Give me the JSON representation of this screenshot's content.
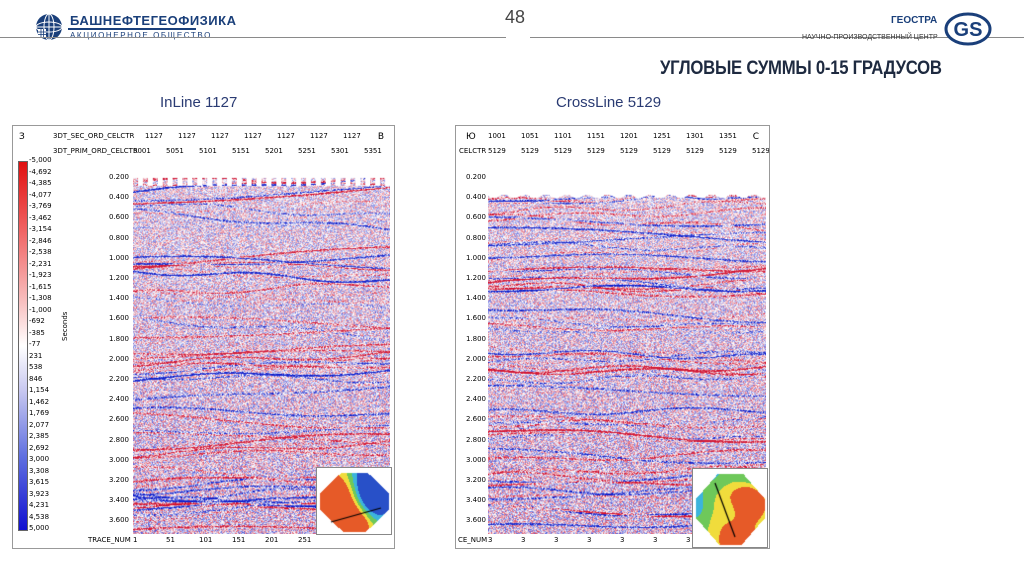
{
  "page_number": "48",
  "header": {
    "left_company": "БАШНЕФТЕГЕОФИЗИКА",
    "left_subtitle": "АКЦИОНЕРНОЕ ОБЩЕСТВО",
    "right_company": "ГЕОСТРА",
    "right_subtitle": "НАУЧНО-ПРОИЗВОДСТВЕННЫЙ ЦЕНТР",
    "right_logo_text": "GS"
  },
  "slide_title": "Угловые суммы 0-15 градусов",
  "left_panel": {
    "title": "InLine 1127",
    "corner_left": "З",
    "corner_right": "В",
    "row1_label": "3DT_SEC_ORD_CELCTR",
    "row1_values": [
      "1127",
      "1127",
      "1127",
      "1127",
      "1127",
      "1127",
      "1127"
    ],
    "row2_label": "3DT_PRIM_ORD_CELCTR",
    "row2_values": [
      "5001",
      "5051",
      "5101",
      "5151",
      "5201",
      "5251",
      "5301",
      "5351"
    ],
    "y_axis_title": "Seconds",
    "y_ticks": [
      "0.200",
      "0.400",
      "0.600",
      "0.800",
      "1.000",
      "1.200",
      "1.400",
      "1.600",
      "1.800",
      "2.000",
      "2.200",
      "2.400",
      "2.600",
      "2.800",
      "3.000",
      "3.200",
      "3.400",
      "3.600"
    ],
    "bottom_label": "TRACE_NUM",
    "bottom_values": [
      "1",
      "51",
      "101",
      "151",
      "201",
      "251"
    ],
    "colorbar_labels": [
      "-5,000",
      "-4,692",
      "-4,385",
      "-4,077",
      "-3,769",
      "-3,462",
      "-3,154",
      "-2,846",
      "-2,538",
      "-2,231",
      "-1,923",
      "-1,615",
      "-1,308",
      "-1,000",
      "-692",
      "-385",
      "-77",
      "231",
      "538",
      "846",
      "1,154",
      "1,462",
      "1,769",
      "2,077",
      "2,385",
      "2,692",
      "3,000",
      "3,308",
      "3,615",
      "3,923",
      "4,231",
      "4,538",
      "5,000"
    ]
  },
  "right_panel": {
    "title": "CrossLine 5129",
    "corner_left": "Ю",
    "corner_right": "С",
    "row1_values": [
      "1001",
      "1051",
      "1101",
      "1151",
      "1201",
      "1251",
      "1301",
      "1351"
    ],
    "row2_label": "CELCTR",
    "row2_values": [
      "5129",
      "5129",
      "5129",
      "5129",
      "5129",
      "5129",
      "5129",
      "5129",
      "5129"
    ],
    "y_ticks": [
      "0.200",
      "0.400",
      "0.600",
      "0.800",
      "1.000",
      "1.200",
      "1.400",
      "1.600",
      "1.800",
      "2.000",
      "2.200",
      "2.400",
      "2.600",
      "2.800",
      "3.000",
      "3.200",
      "3.400",
      "3.600"
    ],
    "bottom_label": "CE_NUM",
    "bottom_values": [
      "3",
      "3",
      "3",
      "3",
      "3",
      "3",
      "3",
      "3",
      "3"
    ]
  },
  "colors": {
    "brand_blue": "#1a3f7a",
    "seismic_positive": "#d42020",
    "seismic_negative": "#2030c0"
  }
}
